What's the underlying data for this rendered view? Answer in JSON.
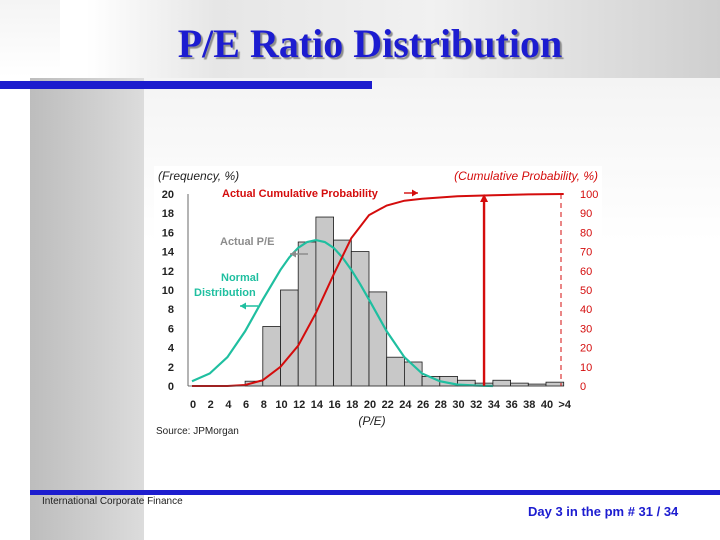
{
  "slide": {
    "title": "P/E Ratio Distribution",
    "footer_left": "International Corporate Finance",
    "footer_right": "Day 3 in the pm # 31 / 34"
  },
  "colors": {
    "title": "#1c1cd0",
    "accent_rule": "#1d1dce",
    "bars": "#c8c8c8",
    "normal_curve": "#1fbfa0",
    "cumulative_curve": "#d40c0c",
    "right_axis_text": "#d40c0c",
    "label_actual_pe": "#8c8c8c"
  },
  "chart_data": {
    "type": "bar",
    "left_axis_label": "(Frequency, %)",
    "right_axis_label": "(Cumulative Probability, %)",
    "xlabel": "(P/E)",
    "source": "Source: JPMorgan",
    "x_tick_labels": [
      "0",
      "2",
      "4",
      "6",
      "8",
      "10",
      "12",
      "14",
      "16",
      "18",
      "20",
      "22",
      "24",
      "26",
      "28",
      "30",
      "32",
      "34",
      "36",
      "38",
      "40",
      ">4"
    ],
    "y_left_ticks": [
      "0",
      "2",
      "4",
      "6",
      "8",
      "10",
      "12",
      "14",
      "16",
      "18",
      "20"
    ],
    "y_right_ticks": [
      "0",
      "10",
      "20",
      "30",
      "40",
      "50",
      "60",
      "70",
      "80",
      "90",
      "100"
    ],
    "ylim_left": [
      0,
      20
    ],
    "ylim_right": [
      0,
      100
    ],
    "series": [
      {
        "name": "Actual P/E",
        "kind": "bar",
        "bins": [
          [
            6,
            8
          ],
          [
            8,
            10
          ],
          [
            10,
            12
          ],
          [
            12,
            14
          ],
          [
            14,
            16
          ],
          [
            16,
            18
          ],
          [
            18,
            20
          ],
          [
            20,
            22
          ],
          [
            22,
            24
          ],
          [
            24,
            26
          ],
          [
            26,
            28
          ],
          [
            28,
            30
          ],
          [
            30,
            32
          ],
          [
            32,
            34
          ],
          [
            34,
            36
          ],
          [
            36,
            38
          ],
          [
            38,
            40
          ],
          [
            40,
            42
          ]
        ],
        "values": [
          0.5,
          6.2,
          10,
          15,
          17.6,
          15.2,
          14,
          9.8,
          3,
          2.5,
          1,
          1,
          0.6,
          0.3,
          0.6,
          0.3,
          0.2,
          0.4
        ]
      },
      {
        "name": "Normal Distribution",
        "kind": "line",
        "x": [
          0,
          2,
          4,
          6,
          8,
          10,
          11,
          12,
          13,
          14,
          15,
          16,
          17,
          18,
          19,
          20,
          22,
          24,
          26,
          28,
          30,
          32,
          34
        ],
        "values": [
          0.5,
          1.3,
          3.0,
          5.7,
          9.0,
          12.1,
          13.4,
          14.4,
          15.0,
          15.2,
          15.0,
          14.4,
          13.4,
          12.1,
          10.6,
          9.0,
          5.7,
          3.0,
          1.3,
          0.5,
          0.15,
          0.05,
          0
        ]
      },
      {
        "name": "Actual Cumulative Probability",
        "kind": "line",
        "axis": "right",
        "x": [
          0,
          4,
          6,
          8,
          10,
          12,
          14,
          16,
          18,
          20,
          22,
          24,
          26,
          28,
          30,
          34,
          38,
          42
        ],
        "values": [
          0,
          0,
          0.5,
          3,
          10,
          21,
          38,
          58,
          77,
          89,
          94,
          96.5,
          97.5,
          98.2,
          98.8,
          99.4,
          99.8,
          100
        ]
      }
    ],
    "annotations": [
      {
        "text": "Actual Cumulative Probability",
        "arrow": "right"
      },
      {
        "text": "Actual P/E",
        "arrow": "left"
      },
      {
        "text": "Normal",
        "arrow": "none"
      },
      {
        "text": "Distribution",
        "arrow": "left"
      }
    ],
    "marker": {
      "x": 33,
      "from_percent": 0,
      "to_percent": 100
    },
    "grid": false
  }
}
